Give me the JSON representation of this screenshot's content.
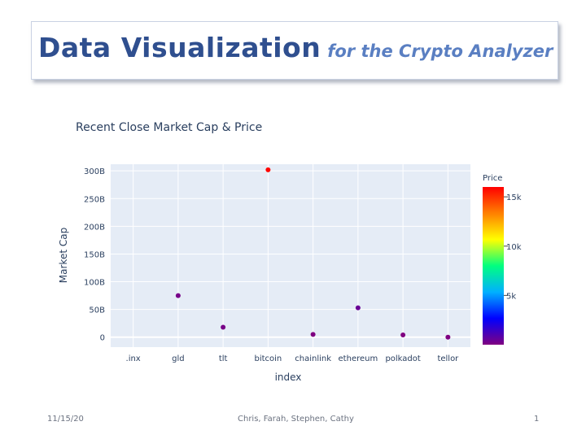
{
  "slide": {
    "title_main": "Data Visualization",
    "title_sub": "for the Crypto Analyzer",
    "footer_date": "11/15/20",
    "footer_authors": "Chris, Farah, Stephen, Cathy",
    "page_number": "1"
  },
  "chart_data": {
    "type": "scatter",
    "title": "Recent Close Market Cap & Price",
    "xlabel": "index",
    "ylabel": "Market Cap",
    "categories": [
      ".inx",
      "gld",
      "tlt",
      "bitcoin",
      "chainlink",
      "ethereum",
      "polkadot",
      "tellor"
    ],
    "points": [
      {
        "x": "gld",
        "y": 75,
        "price": 180
      },
      {
        "x": "tlt",
        "y": 18,
        "price": 160
      },
      {
        "x": "bitcoin",
        "y": 302,
        "price": 15900
      },
      {
        "x": "chainlink",
        "y": 5,
        "price": 12
      },
      {
        "x": "ethereum",
        "y": 53,
        "price": 450
      },
      {
        "x": "polkadot",
        "y": 4,
        "price": 4
      },
      {
        "x": "tellor",
        "y": 0,
        "price": 15
      }
    ],
    "ylim": [
      -18,
      312
    ],
    "yticks": [
      0,
      50,
      100,
      150,
      200,
      250,
      300
    ],
    "ytick_labels": [
      "0",
      "50B",
      "100B",
      "150B",
      "200B",
      "250B",
      "300B"
    ],
    "colorbar": {
      "title": "Price",
      "range": [
        0,
        16000
      ],
      "ticks": [
        5000,
        10000,
        15000
      ],
      "tick_labels": [
        "5k",
        "10k",
        "15k"
      ],
      "colors": [
        "#800080",
        "#0000ff",
        "#00b0ff",
        "#00ff80",
        "#ffff00",
        "#ff8000",
        "#ff0000"
      ]
    },
    "grid": true,
    "legend": "colorbar-right"
  }
}
